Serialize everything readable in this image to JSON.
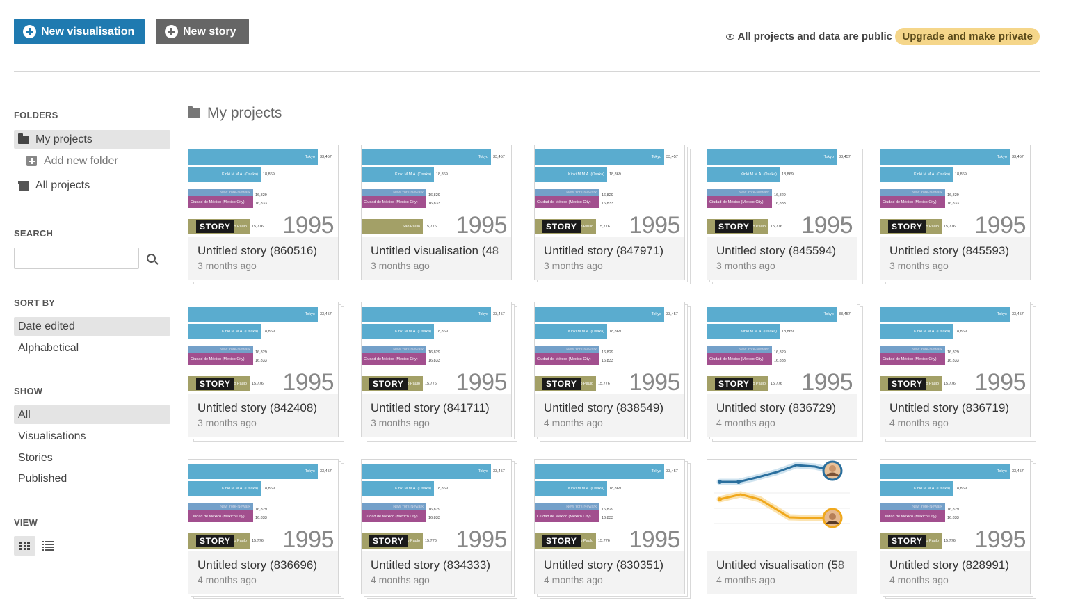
{
  "toolbar": {
    "new_visualisation_label": "New visualisation",
    "new_story_label": "New story",
    "public_note": "All projects and data are public",
    "upgrade_label": "Upgrade and make private"
  },
  "sidebar": {
    "folders_title": "FOLDERS",
    "my_projects": "My projects",
    "add_folder": "Add new folder",
    "all_projects": "All projects",
    "search_title": "SEARCH",
    "search_placeholder": "",
    "sort_title": "SORT BY",
    "sort_options": [
      "Date edited",
      "Alphabetical"
    ],
    "show_title": "SHOW",
    "show_options": [
      "All",
      "Visualisations",
      "Stories",
      "Published"
    ],
    "view_title": "VIEW"
  },
  "main": {
    "title": "My projects",
    "thumbnail": {
      "bars": [
        {
          "label": "Tokyo",
          "value": "33,457",
          "color": "#5aaccf"
        },
        {
          "label": "Kinki M.M.A. (Osaka)",
          "value": "18,869",
          "color": "#5aaccf"
        },
        {
          "label": "New York-Newark",
          "value": "16,829",
          "color": "#5b8fbf"
        },
        {
          "label": "Ciudad de México (Mexico City)",
          "value": "16,833",
          "color": "#a24f8e"
        },
        {
          "label": "São Paulo",
          "value": "15,776",
          "color": "#a3a067"
        }
      ],
      "year": "1995",
      "story_badge": "STORY"
    },
    "projects": [
      {
        "title": "Untitled story (860516)",
        "time": "3 months ago",
        "type": "story"
      },
      {
        "title": "Untitled visualisation (48",
        "time": "3 months ago",
        "type": "vis_bar"
      },
      {
        "title": "Untitled story (847971)",
        "time": "3 months ago",
        "type": "story"
      },
      {
        "title": "Untitled story (845594)",
        "time": "3 months ago",
        "type": "story"
      },
      {
        "title": "Untitled story (845593)",
        "time": "3 months ago",
        "type": "story"
      },
      {
        "title": "Untitled story (842408)",
        "time": "3 months ago",
        "type": "story"
      },
      {
        "title": "Untitled story (841711)",
        "time": "3 months ago",
        "type": "story"
      },
      {
        "title": "Untitled story (838549)",
        "time": "4 months ago",
        "type": "story"
      },
      {
        "title": "Untitled story (836729)",
        "time": "4 months ago",
        "type": "story"
      },
      {
        "title": "Untitled story (836719)",
        "time": "4 months ago",
        "type": "story"
      },
      {
        "title": "Untitled story (836696)",
        "time": "4 months ago",
        "type": "story"
      },
      {
        "title": "Untitled story (834333)",
        "time": "4 months ago",
        "type": "story"
      },
      {
        "title": "Untitled story (830351)",
        "time": "4 months ago",
        "type": "story"
      },
      {
        "title": "Untitled visualisation (58",
        "time": "4 months ago",
        "type": "vis_line"
      },
      {
        "title": "Untitled story (828991)",
        "time": "4 months ago",
        "type": "story"
      }
    ]
  },
  "colors": {
    "primary": "#1f7ab0",
    "secondary": "#666666",
    "upgrade_bg": "#f5d68a",
    "line_blue": "#2a6f9e",
    "line_orange": "#f0a81c"
  }
}
